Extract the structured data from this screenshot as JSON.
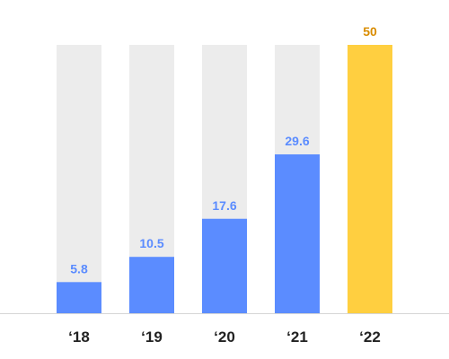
{
  "colors": {
    "track": "#ececec",
    "bar": "#5b8cff",
    "highlight_bar": "#ffcf40",
    "highlight_label": "#d98c00",
    "axis": "#d6d6d6",
    "tick_text": "#222222"
  },
  "chart_data": {
    "type": "bar",
    "categories": [
      "‘18",
      "‘19",
      "‘20",
      "‘21",
      "‘22"
    ],
    "values": [
      5.8,
      10.5,
      17.6,
      29.6,
      50
    ],
    "value_labels": [
      "5.8",
      "10.5",
      "17.6",
      "29.6",
      "50"
    ],
    "highlight_index": 4,
    "ylim": [
      0,
      50
    ],
    "grid": false,
    "legend": "none",
    "background_track": true,
    "title": "",
    "xlabel": "",
    "ylabel": ""
  }
}
